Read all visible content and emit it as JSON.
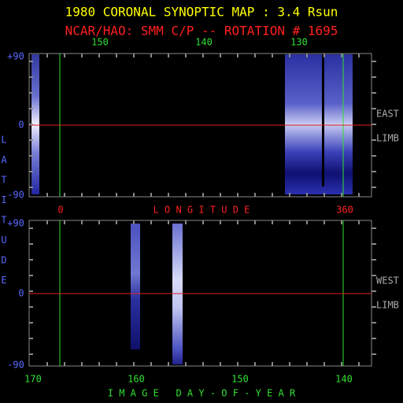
{
  "header": {
    "title": "1980 CORONAL SYNOPTIC MAP : 3.4 Rsun",
    "subtitle": "NCAR/HAO: SMM C/P -- ROTATION # 1695"
  },
  "top_axis": {
    "labels": [
      "150",
      "140",
      "130"
    ]
  },
  "longitude_axis": {
    "start": "0",
    "title": "L O N G I T U D E",
    "end": "360"
  },
  "latitude_axis": {
    "title": [
      "L",
      "A",
      "T",
      "I",
      "T",
      "U",
      "D",
      "E"
    ],
    "upper": [
      "+90",
      "0",
      "-90"
    ],
    "lower": [
      "+90",
      "0",
      "-90"
    ]
  },
  "limbs": {
    "east": [
      "EAST",
      "LIMB"
    ],
    "west": [
      "WEST",
      "LIMB"
    ]
  },
  "bottom_axis": {
    "labels": [
      "170",
      "160",
      "150",
      "140"
    ],
    "title": "I M A G E   D A Y - O F - Y E A R"
  }
}
